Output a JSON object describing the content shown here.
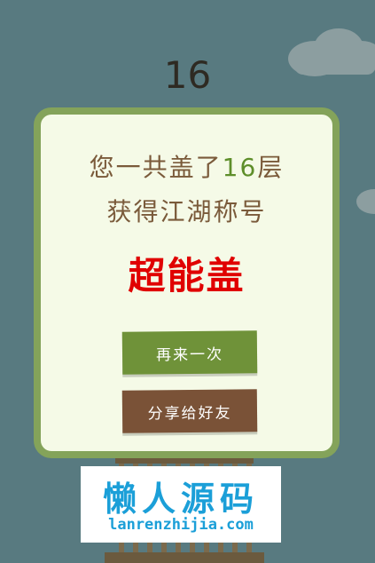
{
  "score": "16",
  "result": {
    "line1_prefix": "您一共盖了",
    "floors": "16",
    "line1_suffix": "层",
    "line2": "获得江湖称号",
    "rank_title": "超能盖"
  },
  "buttons": {
    "replay_label": "再来一次",
    "share_label": "分享给好友"
  },
  "watermark": {
    "title": "懒人源码",
    "url": "lanrenzhijia.com"
  },
  "colors": {
    "background": "#587a80",
    "card_border": "#84a35a",
    "card_fill": "#f5fae7",
    "rank_red": "#e00000",
    "replay_green": "#6f9239",
    "share_brown": "#7a5237",
    "watermark_blue": "#1b9fd8"
  }
}
